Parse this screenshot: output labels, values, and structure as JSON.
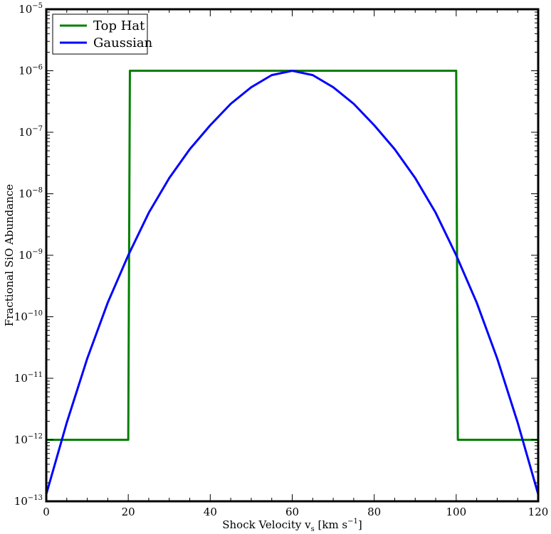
{
  "chart_data": {
    "type": "line",
    "title": "",
    "xlabel": "Shock Velocity v",
    "xlabel_sub": "s",
    "xlabel_unit_prefix": " [km s",
    "xlabel_unit_exp": "−1",
    "xlabel_unit_suffix": "]",
    "ylabel": "Fractional SiO Abundance",
    "xlim": [
      0,
      120
    ],
    "ylim": [
      1e-13,
      1e-05
    ],
    "yscale": "log",
    "grid": false,
    "legend_position": "top-left",
    "x_ticks": [
      0,
      20,
      40,
      60,
      80,
      100,
      120
    ],
    "x_tick_labels": [
      "0",
      "20",
      "40",
      "60",
      "80",
      "100",
      "120"
    ],
    "y_tick_exponents": [
      -13,
      -12,
      -11,
      -10,
      -9,
      -8,
      -7,
      -6,
      -5
    ],
    "y_tick_labels": [
      {
        "base": "10",
        "exp": "−13"
      },
      {
        "base": "10",
        "exp": "−12"
      },
      {
        "base": "10",
        "exp": "−11"
      },
      {
        "base": "10",
        "exp": "−10"
      },
      {
        "base": "10",
        "exp": "−9"
      },
      {
        "base": "10",
        "exp": "−8"
      },
      {
        "base": "10",
        "exp": "−7"
      },
      {
        "base": "10",
        "exp": "−6"
      },
      {
        "base": "10",
        "exp": "−5"
      }
    ],
    "series": [
      {
        "name": "Top Hat",
        "color": "#008000",
        "x": [
          0,
          20,
          20.4,
          100,
          100.4,
          120
        ],
        "y": [
          1e-12,
          1e-12,
          1e-06,
          1e-06,
          1e-12,
          1e-12
        ]
      },
      {
        "name": "Gaussian",
        "color": "#0000ff",
        "x": [
          0,
          5,
          10,
          15,
          20,
          25,
          30,
          35,
          40,
          45,
          50,
          55,
          60,
          65,
          70,
          75,
          80,
          85,
          90,
          95,
          100,
          105,
          110,
          115,
          120
        ],
        "y": [
          1.3e-13,
          1.9e-12,
          2.1e-11,
          1.7e-10,
          1e-09,
          4.9e-09,
          1.8e-08,
          5.3e-08,
          1.3e-07,
          2.9e-07,
          5.4e-07,
          8.5e-07,
          1e-06,
          8.5e-07,
          5.4e-07,
          2.9e-07,
          1.3e-07,
          5.3e-08,
          1.8e-08,
          4.9e-09,
          1e-09,
          1.7e-10,
          2.1e-11,
          1.9e-12,
          1.3e-13
        ]
      }
    ]
  }
}
